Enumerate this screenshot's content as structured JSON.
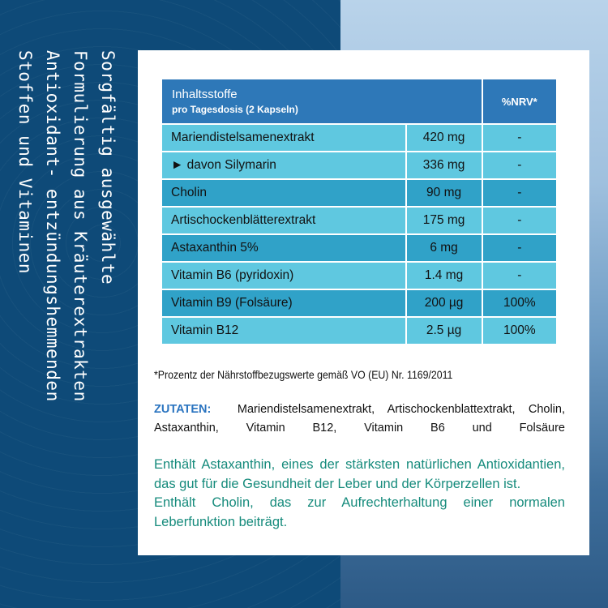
{
  "side_text": [
    "Sorgfältig ausgewählte",
    "Formulierung aus Kräuterextrakten",
    "Antioxidant- entzündungshemmenden",
    "Stoffen und Vitaminen"
  ],
  "table": {
    "header": {
      "title": "Inhaltsstoffe",
      "subtitle": "pro Tagesdosis  (2 Kapseln)",
      "nrv": "%NRV*"
    },
    "rows": [
      {
        "name": "Mariendistelsamenextrakt",
        "amount": "420 mg",
        "nrv": "-"
      },
      {
        "name": "► davon Silymarin",
        "amount": "336 mg",
        "nrv": "-"
      },
      {
        "name": "Cholin",
        "amount": "90 mg",
        "nrv": "-"
      },
      {
        "name": "Artischockenblätterextrakt",
        "amount": "175 mg",
        "nrv": "-"
      },
      {
        "name": "Astaxanthin 5%",
        "amount": "6 mg",
        "nrv": "-"
      },
      {
        "name": "Vitamin B6 (pyridoxin)",
        "amount": "1.4 mg",
        "nrv": "-"
      },
      {
        "name": "Vitamin B9 (Folsäure)",
        "amount": "200 µg",
        "nrv": "100%"
      },
      {
        "name": "Vitamin B12",
        "amount": "2.5 µg",
        "nrv": "100%"
      }
    ]
  },
  "footnote": "*Prozentz der Nährstoffbezugswerte gemäß  VO (EU) Nr. 1169/2011",
  "ingredients": {
    "label": "ZUTATEN:",
    "text": "Mariendistelsamenextrakt, Artischockenblattextrakt, Cholin, Astaxanthin, Vitamin B12, Vitamin B6 und Folsäure"
  },
  "claims": [
    "Enthält Astaxanthin, eines der stärksten natürlichen Antioxidantien, das gut für die Gesundheit der Leber und der Körperzellen ist.",
    "Enthält Cholin, das zur Aufrechterhaltung einer normalen Leberfunktion beiträgt."
  ],
  "colors": {
    "header": "#2e78b8",
    "row_light": "#5fc8e0",
    "row_dark": "#30a2c8",
    "claims": "#168b7c",
    "ingredients_label": "#2a74c0",
    "side_panel": "#0e4a78"
  }
}
